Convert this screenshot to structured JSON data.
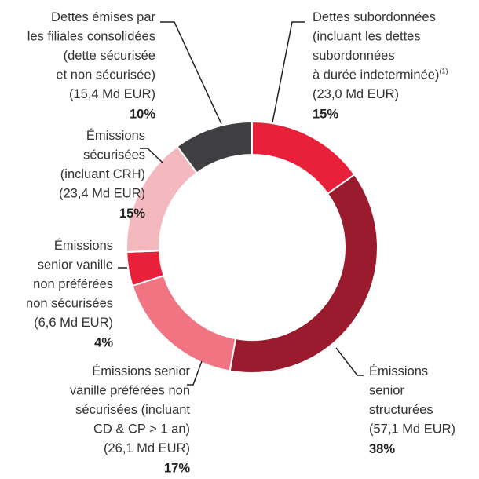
{
  "chart_data": {
    "type": "donut",
    "categories": [
      [
        "Dettes subordonnées",
        "(incluant les dettes",
        "subordonnées",
        "à durée indeterminée)"
      ],
      [
        "Émissions",
        "senior",
        "structurées"
      ],
      [
        "Émissions senior",
        "vanille préférées non",
        "sécurisées (incluant",
        "CD & CP > 1 an)"
      ],
      [
        "Émissions",
        "senior vanille",
        "non préférées",
        "non sécurisées"
      ],
      [
        "Émissions",
        "sécurisées",
        "(incluant CRH)"
      ],
      [
        "Dettes émises par",
        "les filiales consolidées",
        "(dette sécurisée",
        "et non sécurisée)"
      ]
    ],
    "category_superscripts": [
      "(1)",
      null,
      null,
      null,
      null,
      null
    ],
    "values": [
      23.0,
      57.1,
      26.1,
      6.6,
      23.4,
      15.4
    ],
    "value_labels": [
      "(23,0 Md EUR)",
      "(57,1 Md EUR)",
      "(26,1 Md EUR)",
      "(6,6 Md EUR)",
      "(23,4 Md EUR)",
      "(15,4 Md EUR)"
    ],
    "percentages": [
      15,
      38,
      17,
      4,
      15,
      10
    ],
    "percentage_labels": [
      "15%",
      "38%",
      "17%",
      "4%",
      "15%",
      "10%"
    ],
    "colors": [
      "#e8203a",
      "#9b1b2e",
      "#f07482",
      "#e8203a",
      "#f4b9bf",
      "#3f3f41"
    ]
  }
}
